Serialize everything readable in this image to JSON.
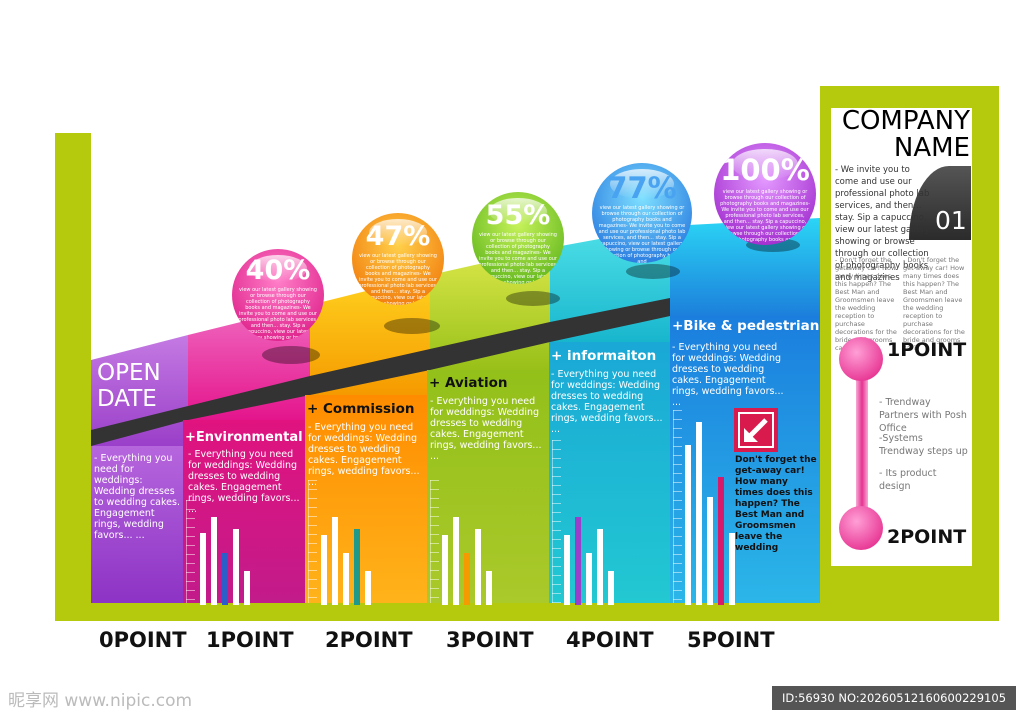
{
  "columns": [
    {
      "key": "open",
      "title_line1": "OPEN",
      "title_line2": "DATE",
      "desc": "- Everything you need for weddings: Wedding dresses to wedding cakes. Engagement rings, wedding favors... ..."
    },
    {
      "key": "env",
      "title": "+Environmental",
      "desc": "- Everything you need for weddings: Wedding dresses to wedding cakes. Engagement rings, wedding favors... ..."
    },
    {
      "key": "com",
      "title": "+ Commission",
      "desc": "- Everything you need for weddings: Wedding dresses to wedding cakes. Engagement rings, wedding favors... ..."
    },
    {
      "key": "avi",
      "title": "+ Aviation",
      "desc": "- Everything you need for weddings: Wedding dresses to wedding cakes. Engagement rings, wedding favors... ..."
    },
    {
      "key": "inf",
      "title": "+ informaiton",
      "desc": "- Everything you need for weddings: Wedding dresses to wedding cakes. Engagement rings, wedding favors... ..."
    },
    {
      "key": "bike",
      "title": "+Bike & pedestrian",
      "desc": "- Everything you need for weddings: Wedding dresses to wedding cakes. Engagement rings, wedding favors... ..."
    }
  ],
  "balls": [
    {
      "pct": "40%",
      "color": "#e0189a"
    },
    {
      "pct": "47%",
      "color": "#f28a00"
    },
    {
      "pct": "55%",
      "color": "#6cc21c"
    },
    {
      "pct": "77%",
      "color": "#1b86e0"
    },
    {
      "pct": "100%",
      "color": "#b11fd0"
    }
  ],
  "ball_text": "view our latest gallery showing or browse through our collection of photography books and magazines- We invite you to come and use our professional photo lab services, and then... stay. Sip a capuccino, view our latest gallery showing or browse through our collection of photography books and",
  "points": [
    "0POINT",
    "1POINT",
    "2POINT",
    "3POINT",
    "4POINT",
    "5POINT"
  ],
  "callout": "Don't forget the get-away car! How many times does this happen? The Best Man and Groomsmen leave the wedding",
  "company": {
    "name_line1": "COMPANY",
    "name_line2": "NAME",
    "intro": "- We invite you to come and use our professional photo lab services, and then... stay. Sip a capuccino, view our latest gallery showing or browse through our collection of photography books and magazines",
    "number": "01",
    "small_left": "- Don't forget the get-away car! How many times does this happen? The Best Man and Groomsmen leave the wedding reception to purchase decorations for the bride and grooms car?",
    "small_right": "- Don't forget the get-away car! How many times does this happen? The Best Man and Groomsmen leave the wedding reception to purchase decorations for the bride and grooms car?",
    "point_top": "1POINT",
    "point_bottom": "2POINT",
    "items": [
      "- Trendway Partners with Posh Office",
      "-Systems Trendway steps up",
      "- Its product design"
    ]
  },
  "watermark_left": "昵享网 www.nipic.com",
  "watermark_right": "ID:56930 NO:20260512160600229105",
  "colors": {
    "frame": "#b5c90d",
    "purple": "#b04fd6",
    "pink": "#e81c8e",
    "orange": "#f7a00a",
    "green": "#a5c81a",
    "teal": "#1fc6d3",
    "blue": "#1e8ee0"
  }
}
